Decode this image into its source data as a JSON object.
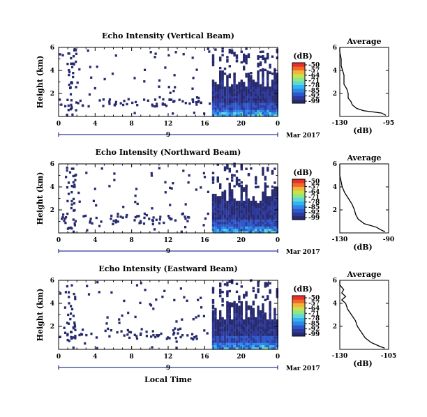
{
  "chart_data": [
    {
      "type": "heatmap",
      "title": "Echo Intensity (Vertical Beam)",
      "ylabel": "Height (km)",
      "xticks": [
        "0",
        "4",
        "8",
        "12",
        "16",
        "20",
        "0"
      ],
      "yticks": [
        "2",
        "4",
        "6"
      ],
      "ylim": [
        0,
        6
      ],
      "date_day": "9",
      "date_month": "Mar 2017",
      "colorbar": {
        "unit": "(dB)",
        "ticks": [
          "-50",
          "-57",
          "-64",
          "-71",
          "-78",
          "-85",
          "-92",
          "-99"
        ],
        "range": [
          -99,
          -50
        ]
      },
      "clear_start_hour": 16.8,
      "average": {
        "title": "Average",
        "xlabel": "(dB)",
        "xticks": [
          "-130",
          "-95"
        ],
        "xlim": [
          -130,
          -95
        ],
        "ylim": [
          0,
          6
        ],
        "yticks": [
          "2",
          "4",
          "6"
        ],
        "profile": [
          [
            -97,
            0.1
          ],
          [
            -100,
            0.3
          ],
          [
            -113,
            0.5
          ],
          [
            -118,
            0.7
          ],
          [
            -121,
            1.0
          ],
          [
            -122,
            1.3
          ],
          [
            -124,
            1.6
          ],
          [
            -124,
            2.0
          ],
          [
            -125,
            2.4
          ],
          [
            -127,
            2.8
          ],
          [
            -127,
            3.2
          ],
          [
            -127,
            3.6
          ],
          [
            -128,
            4.0
          ],
          [
            -129,
            4.4
          ],
          [
            -129,
            5.0
          ],
          [
            -130,
            5.6
          ],
          [
            -130,
            6.0
          ]
        ]
      }
    },
    {
      "type": "heatmap",
      "title": "Echo Intensity (Northward Beam)",
      "ylabel": "Height (km)",
      "xticks": [
        "0",
        "4",
        "8",
        "12",
        "16",
        "20",
        "0"
      ],
      "yticks": [
        "2",
        "4",
        "6"
      ],
      "ylim": [
        0,
        6
      ],
      "date_day": "9",
      "date_month": "Mar 2017",
      "colorbar": {
        "unit": "(dB)",
        "ticks": [
          "-50",
          "-57",
          "-64",
          "-71",
          "-78",
          "-85",
          "-92",
          "-99"
        ],
        "range": [
          -99,
          -50
        ]
      },
      "clear_start_hour": 16.8,
      "average": {
        "title": "Average",
        "xlabel": "(dB)",
        "xticks": [
          "-130",
          "-90"
        ],
        "xlim": [
          -130,
          -90
        ],
        "ylim": [
          0,
          6
        ],
        "yticks": [
          "2",
          "4",
          "6"
        ],
        "profile": [
          [
            -93,
            0.1
          ],
          [
            -97,
            0.3
          ],
          [
            -100,
            0.5
          ],
          [
            -110,
            0.8
          ],
          [
            -115,
            1.2
          ],
          [
            -117,
            1.6
          ],
          [
            -118,
            2.0
          ],
          [
            -120,
            2.5
          ],
          [
            -123,
            3.0
          ],
          [
            -126,
            3.5
          ],
          [
            -128,
            4.0
          ],
          [
            -129,
            4.5
          ],
          [
            -130,
            5.0
          ],
          [
            -130,
            6.0
          ]
        ]
      }
    },
    {
      "type": "heatmap",
      "title": "Echo Intensity (Eastward Beam)",
      "ylabel": "Height (km)",
      "xlabel": "Local Time",
      "xticks": [
        "0",
        "4",
        "8",
        "12",
        "16",
        "20",
        "0"
      ],
      "yticks": [
        "2",
        "4",
        "6"
      ],
      "ylim": [
        0,
        6
      ],
      "date_day": "9",
      "date_month": "Mar 2017",
      "colorbar": {
        "unit": "(dB)",
        "ticks": [
          "-50",
          "-57",
          "-64",
          "-71",
          "-78",
          "-85",
          "-92",
          "-99"
        ],
        "range": [
          -99,
          -50
        ]
      },
      "clear_start_hour": 16.8,
      "average": {
        "title": "Average",
        "xlabel": "(dB)",
        "xticks": [
          "-130",
          "-105"
        ],
        "xlim": [
          -130,
          -105
        ],
        "ylim": [
          0,
          6
        ],
        "yticks": [
          "2",
          "4",
          "6"
        ],
        "profile": [
          [
            -107,
            0.1
          ],
          [
            -110,
            0.3
          ],
          [
            -114,
            0.6
          ],
          [
            -117,
            1.0
          ],
          [
            -119,
            1.5
          ],
          [
            -121,
            2.0
          ],
          [
            -122,
            2.5
          ],
          [
            -124,
            3.0
          ],
          [
            -126,
            3.5
          ],
          [
            -127,
            4.0
          ],
          [
            -129,
            4.3
          ],
          [
            -127,
            4.6
          ],
          [
            -129,
            4.9
          ],
          [
            -128,
            5.2
          ],
          [
            -130,
            5.6
          ],
          [
            -130,
            6.0
          ]
        ]
      }
    }
  ]
}
